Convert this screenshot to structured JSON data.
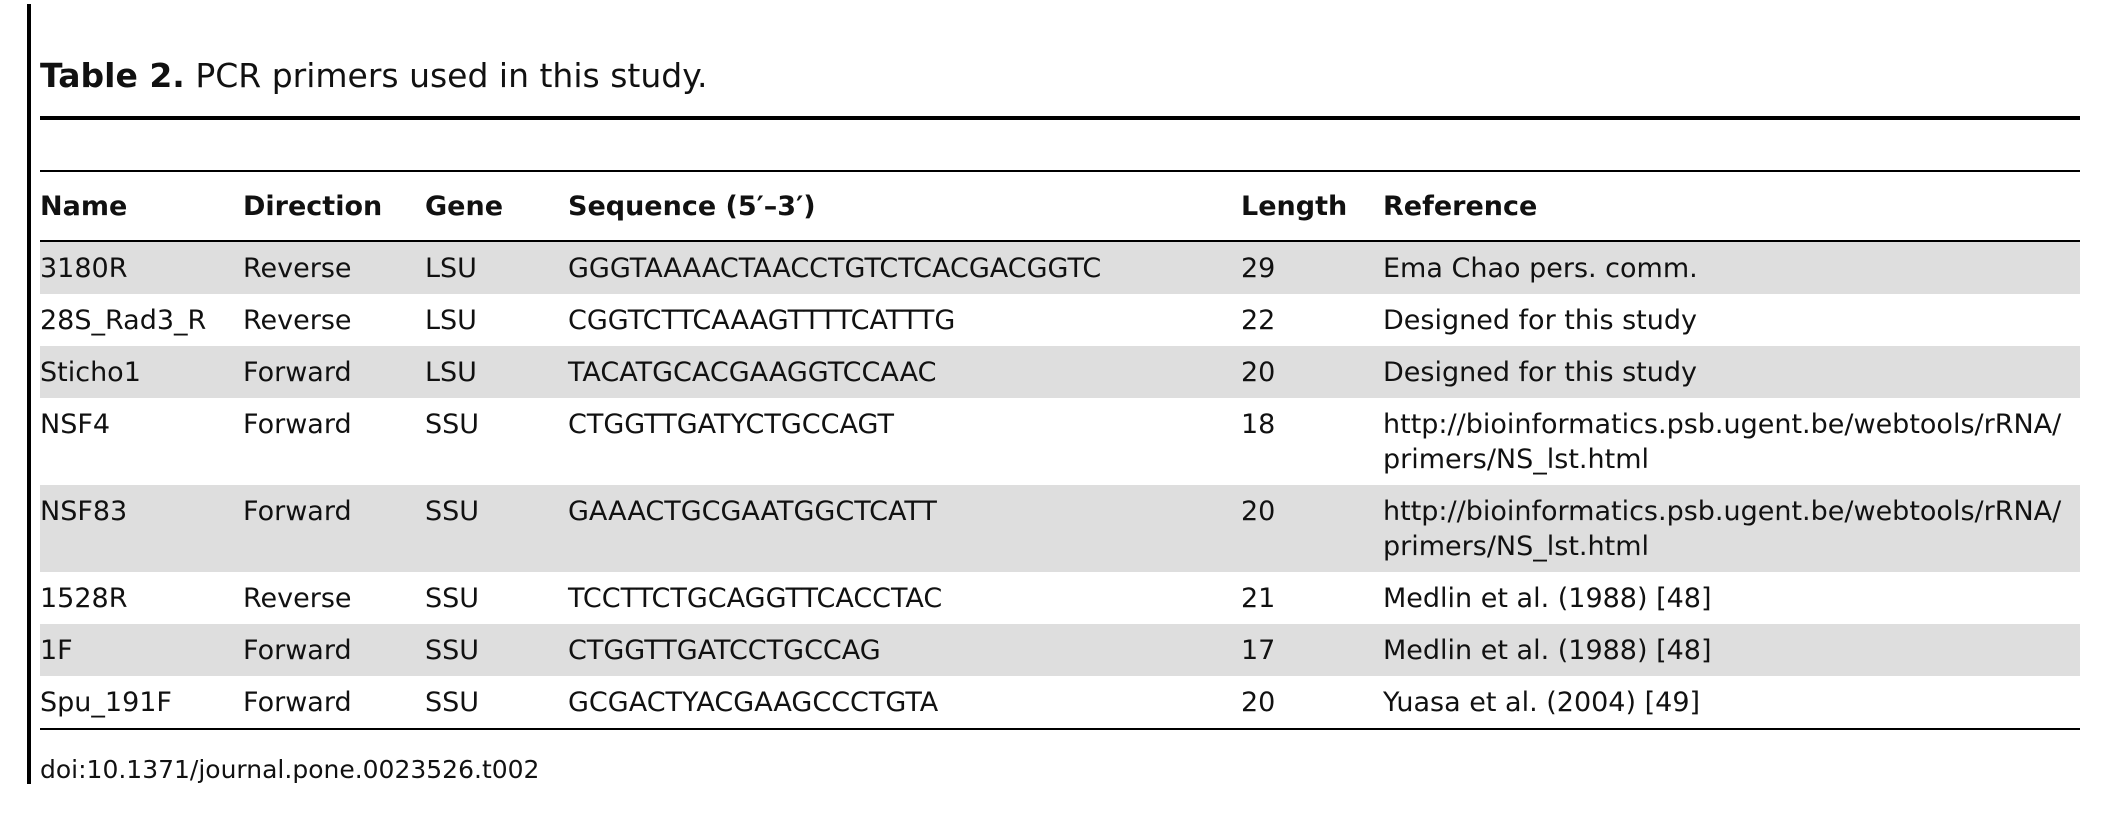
{
  "caption": {
    "label": "Table 2.",
    "text": "PCR primers used in this study."
  },
  "table": {
    "headers": {
      "name": "Name",
      "direction": "Direction",
      "gene": "Gene",
      "sequence": "Sequence (5′–3′)",
      "length": "Length",
      "reference": "Reference"
    },
    "rows": [
      {
        "name": "3180R",
        "direction": "Reverse",
        "gene": "LSU",
        "sequence": "GGGTAAAACTAACCTGTCTCACGACGGTC",
        "length": "29",
        "reference": "Ema Chao pers. comm."
      },
      {
        "name": "28S_Rad3_R",
        "direction": "Reverse",
        "gene": "LSU",
        "sequence": "CGGTCTTCAAAGTTTTCATTTG",
        "length": "22",
        "reference": "Designed for this study"
      },
      {
        "name": "Sticho1",
        "direction": "Forward",
        "gene": "LSU",
        "sequence": "TACATGCACGAAGGTCCAAC",
        "length": "20",
        "reference": "Designed for this study"
      },
      {
        "name": "NSF4",
        "direction": "Forward",
        "gene": "SSU",
        "sequence": "CTGGTTGATYCTGCCAGT",
        "length": "18",
        "reference": "http://bioinformatics.psb.ugent.be/webtools/rRNA/primers/NS_lst.html"
      },
      {
        "name": "NSF83",
        "direction": "Forward",
        "gene": "SSU",
        "sequence": "GAAACTGCGAATGGCTCATT",
        "length": "20",
        "reference": "http://bioinformatics.psb.ugent.be/webtools/rRNA/primers/NS_lst.html"
      },
      {
        "name": "1528R",
        "direction": "Reverse",
        "gene": "SSU",
        "sequence": "TCCTTCTGCAGGTTCACCTAC",
        "length": "21",
        "reference": "Medlin et al. (1988) [48]"
      },
      {
        "name": "1F",
        "direction": "Forward",
        "gene": "SSU",
        "sequence": "CTGGTTGATCCTGCCAG",
        "length": "17",
        "reference": "Medlin et al. (1988) [48]"
      },
      {
        "name": "Spu_191F",
        "direction": "Forward",
        "gene": "SSU",
        "sequence": "GCGACTYACGAAGCCCTGTA",
        "length": "20",
        "reference": "Yuasa et al. (2004) [49]"
      }
    ]
  },
  "footer": {
    "doi": "doi:10.1371/journal.pone.0023526.t002"
  }
}
